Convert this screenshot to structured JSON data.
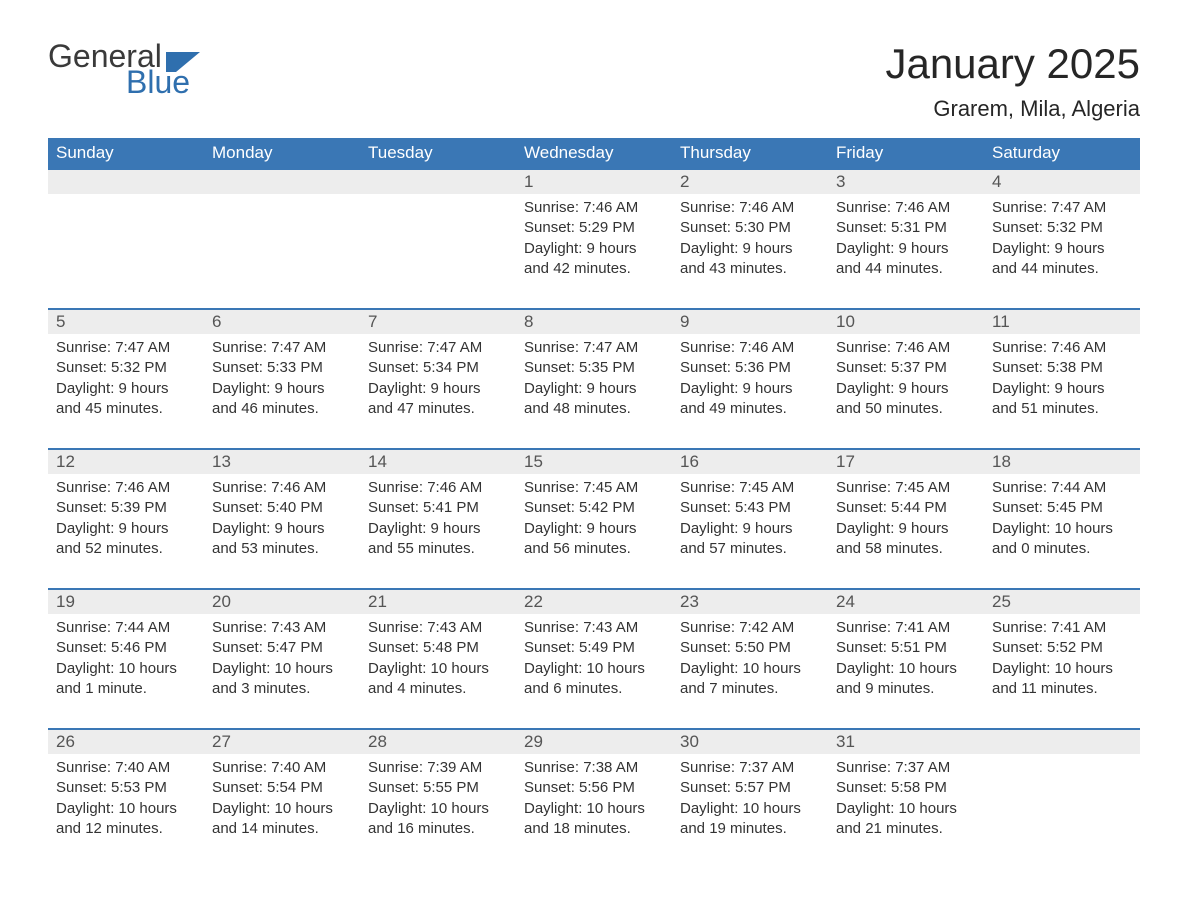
{
  "logo": {
    "text1": "General",
    "text2": "Blue"
  },
  "title": {
    "month": "January 2025",
    "location": "Grarem, Mila, Algeria"
  },
  "colors": {
    "header_bg": "#3a77b5",
    "header_text": "#ffffff",
    "daynum_bg": "#ededed",
    "border_top": "#3a77b5",
    "body_text": "#333333",
    "logo_blue": "#2f6fae",
    "logo_gray": "#3a3a3a"
  },
  "weekdays": [
    "Sunday",
    "Monday",
    "Tuesday",
    "Wednesday",
    "Thursday",
    "Friday",
    "Saturday"
  ],
  "weeks": [
    [
      {
        "empty": true
      },
      {
        "empty": true
      },
      {
        "empty": true
      },
      {
        "day": "1",
        "sunrise": "Sunrise: 7:46 AM",
        "sunset": "Sunset: 5:29 PM",
        "daylight": "Daylight: 9 hours and 42 minutes."
      },
      {
        "day": "2",
        "sunrise": "Sunrise: 7:46 AM",
        "sunset": "Sunset: 5:30 PM",
        "daylight": "Daylight: 9 hours and 43 minutes."
      },
      {
        "day": "3",
        "sunrise": "Sunrise: 7:46 AM",
        "sunset": "Sunset: 5:31 PM",
        "daylight": "Daylight: 9 hours and 44 minutes."
      },
      {
        "day": "4",
        "sunrise": "Sunrise: 7:47 AM",
        "sunset": "Sunset: 5:32 PM",
        "daylight": "Daylight: 9 hours and 44 minutes."
      }
    ],
    [
      {
        "day": "5",
        "sunrise": "Sunrise: 7:47 AM",
        "sunset": "Sunset: 5:32 PM",
        "daylight": "Daylight: 9 hours and 45 minutes."
      },
      {
        "day": "6",
        "sunrise": "Sunrise: 7:47 AM",
        "sunset": "Sunset: 5:33 PM",
        "daylight": "Daylight: 9 hours and 46 minutes."
      },
      {
        "day": "7",
        "sunrise": "Sunrise: 7:47 AM",
        "sunset": "Sunset: 5:34 PM",
        "daylight": "Daylight: 9 hours and 47 minutes."
      },
      {
        "day": "8",
        "sunrise": "Sunrise: 7:47 AM",
        "sunset": "Sunset: 5:35 PM",
        "daylight": "Daylight: 9 hours and 48 minutes."
      },
      {
        "day": "9",
        "sunrise": "Sunrise: 7:46 AM",
        "sunset": "Sunset: 5:36 PM",
        "daylight": "Daylight: 9 hours and 49 minutes."
      },
      {
        "day": "10",
        "sunrise": "Sunrise: 7:46 AM",
        "sunset": "Sunset: 5:37 PM",
        "daylight": "Daylight: 9 hours and 50 minutes."
      },
      {
        "day": "11",
        "sunrise": "Sunrise: 7:46 AM",
        "sunset": "Sunset: 5:38 PM",
        "daylight": "Daylight: 9 hours and 51 minutes."
      }
    ],
    [
      {
        "day": "12",
        "sunrise": "Sunrise: 7:46 AM",
        "sunset": "Sunset: 5:39 PM",
        "daylight": "Daylight: 9 hours and 52 minutes."
      },
      {
        "day": "13",
        "sunrise": "Sunrise: 7:46 AM",
        "sunset": "Sunset: 5:40 PM",
        "daylight": "Daylight: 9 hours and 53 minutes."
      },
      {
        "day": "14",
        "sunrise": "Sunrise: 7:46 AM",
        "sunset": "Sunset: 5:41 PM",
        "daylight": "Daylight: 9 hours and 55 minutes."
      },
      {
        "day": "15",
        "sunrise": "Sunrise: 7:45 AM",
        "sunset": "Sunset: 5:42 PM",
        "daylight": "Daylight: 9 hours and 56 minutes."
      },
      {
        "day": "16",
        "sunrise": "Sunrise: 7:45 AM",
        "sunset": "Sunset: 5:43 PM",
        "daylight": "Daylight: 9 hours and 57 minutes."
      },
      {
        "day": "17",
        "sunrise": "Sunrise: 7:45 AM",
        "sunset": "Sunset: 5:44 PM",
        "daylight": "Daylight: 9 hours and 58 minutes."
      },
      {
        "day": "18",
        "sunrise": "Sunrise: 7:44 AM",
        "sunset": "Sunset: 5:45 PM",
        "daylight": "Daylight: 10 hours and 0 minutes."
      }
    ],
    [
      {
        "day": "19",
        "sunrise": "Sunrise: 7:44 AM",
        "sunset": "Sunset: 5:46 PM",
        "daylight": "Daylight: 10 hours and 1 minute."
      },
      {
        "day": "20",
        "sunrise": "Sunrise: 7:43 AM",
        "sunset": "Sunset: 5:47 PM",
        "daylight": "Daylight: 10 hours and 3 minutes."
      },
      {
        "day": "21",
        "sunrise": "Sunrise: 7:43 AM",
        "sunset": "Sunset: 5:48 PM",
        "daylight": "Daylight: 10 hours and 4 minutes."
      },
      {
        "day": "22",
        "sunrise": "Sunrise: 7:43 AM",
        "sunset": "Sunset: 5:49 PM",
        "daylight": "Daylight: 10 hours and 6 minutes."
      },
      {
        "day": "23",
        "sunrise": "Sunrise: 7:42 AM",
        "sunset": "Sunset: 5:50 PM",
        "daylight": "Daylight: 10 hours and 7 minutes."
      },
      {
        "day": "24",
        "sunrise": "Sunrise: 7:41 AM",
        "sunset": "Sunset: 5:51 PM",
        "daylight": "Daylight: 10 hours and 9 minutes."
      },
      {
        "day": "25",
        "sunrise": "Sunrise: 7:41 AM",
        "sunset": "Sunset: 5:52 PM",
        "daylight": "Daylight: 10 hours and 11 minutes."
      }
    ],
    [
      {
        "day": "26",
        "sunrise": "Sunrise: 7:40 AM",
        "sunset": "Sunset: 5:53 PM",
        "daylight": "Daylight: 10 hours and 12 minutes."
      },
      {
        "day": "27",
        "sunrise": "Sunrise: 7:40 AM",
        "sunset": "Sunset: 5:54 PM",
        "daylight": "Daylight: 10 hours and 14 minutes."
      },
      {
        "day": "28",
        "sunrise": "Sunrise: 7:39 AM",
        "sunset": "Sunset: 5:55 PM",
        "daylight": "Daylight: 10 hours and 16 minutes."
      },
      {
        "day": "29",
        "sunrise": "Sunrise: 7:38 AM",
        "sunset": "Sunset: 5:56 PM",
        "daylight": "Daylight: 10 hours and 18 minutes."
      },
      {
        "day": "30",
        "sunrise": "Sunrise: 7:37 AM",
        "sunset": "Sunset: 5:57 PM",
        "daylight": "Daylight: 10 hours and 19 minutes."
      },
      {
        "day": "31",
        "sunrise": "Sunrise: 7:37 AM",
        "sunset": "Sunset: 5:58 PM",
        "daylight": "Daylight: 10 hours and 21 minutes."
      },
      {
        "empty": true
      }
    ]
  ]
}
